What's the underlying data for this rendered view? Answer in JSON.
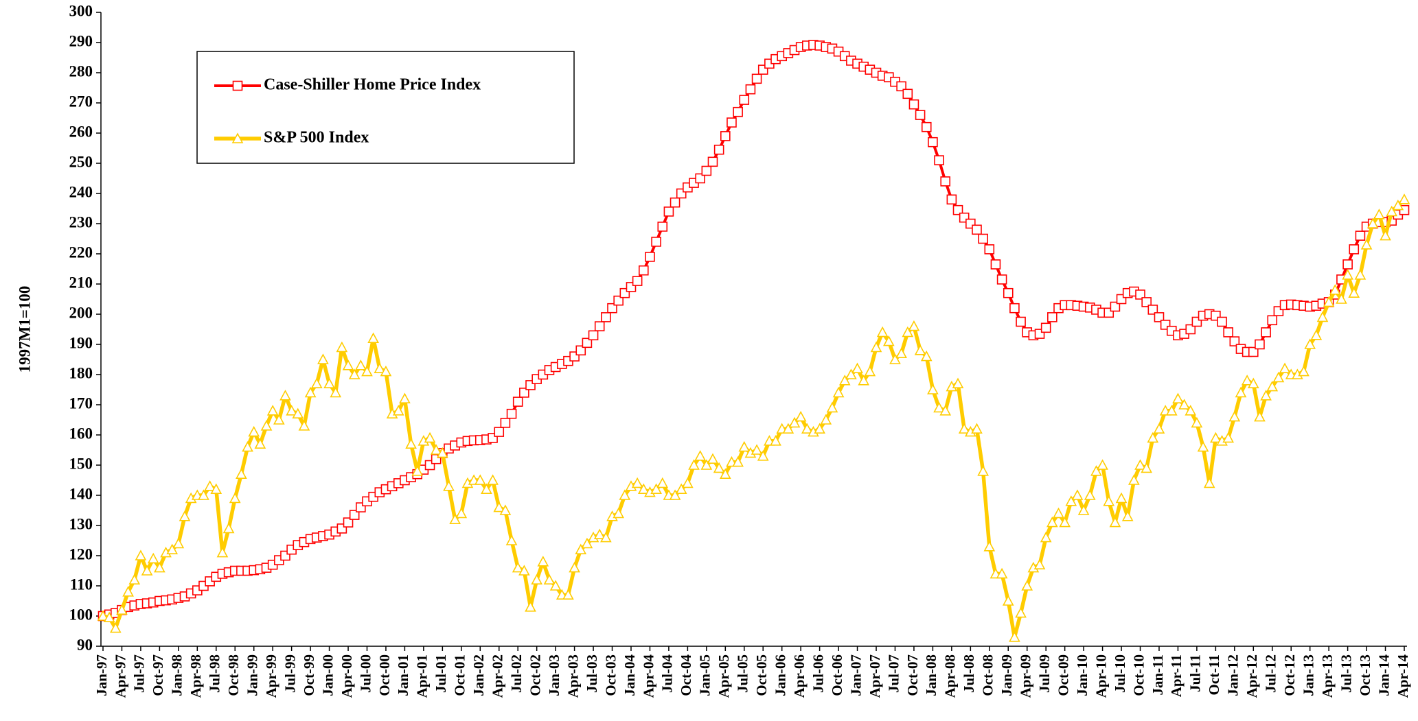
{
  "chart_data": {
    "type": "line",
    "y_label": "1997M1=100",
    "ylim": [
      90,
      300
    ],
    "yticks": [
      90,
      100,
      110,
      120,
      130,
      140,
      150,
      160,
      170,
      180,
      190,
      200,
      210,
      220,
      230,
      240,
      250,
      260,
      270,
      280,
      290,
      300
    ],
    "legend": "upper left",
    "categories": [
      "Jan-97",
      null,
      null,
      "Apr-97",
      null,
      null,
      "Jul-97",
      null,
      null,
      "Oct-97",
      null,
      null,
      "Jan-98",
      null,
      null,
      "Apr-98",
      null,
      null,
      "Jul-98",
      null,
      null,
      "Oct-98",
      null,
      null,
      "Jan-99",
      null,
      null,
      "Apr-99",
      null,
      null,
      "Jul-99",
      null,
      null,
      "Oct-99",
      null,
      null,
      "Jan-00",
      null,
      null,
      "Apr-00",
      null,
      null,
      "Jul-00",
      null,
      null,
      "Oct-00",
      null,
      null,
      "Jan-01",
      null,
      null,
      "Apr-01",
      null,
      null,
      "Jul-01",
      null,
      null,
      "Oct-01",
      null,
      null,
      "Jan-02",
      null,
      null,
      "Apr-02",
      null,
      null,
      "Jul-02",
      null,
      null,
      "Oct-02",
      null,
      null,
      "Jan-03",
      null,
      null,
      "Apr-03",
      null,
      null,
      "Jul-03",
      null,
      null,
      "Oct-03",
      null,
      null,
      "Jan-04",
      null,
      null,
      "Apr-04",
      null,
      null,
      "Jul-04",
      null,
      null,
      "Oct-04",
      null,
      null,
      "Jan-05",
      null,
      null,
      "Apr-05",
      null,
      null,
      "Jul-05",
      null,
      null,
      "Oct-05",
      null,
      null,
      "Jan-06",
      null,
      null,
      "Apr-06",
      null,
      null,
      "Jul-06",
      null,
      null,
      "Oct-06",
      null,
      null,
      "Jan-07",
      null,
      null,
      "Apr-07",
      null,
      null,
      "Jul-07",
      null,
      null,
      "Oct-07",
      null,
      null,
      "Jan-08",
      null,
      null,
      "Apr-08",
      null,
      null,
      "Jul-08",
      null,
      null,
      "Oct-08",
      null,
      null,
      "Jan-09",
      null,
      null,
      "Apr-09",
      null,
      null,
      "Jul-09",
      null,
      null,
      "Oct-09",
      null,
      null,
      "Jan-10",
      null,
      null,
      "Apr-10",
      null,
      null,
      "Jul-10",
      null,
      null,
      "Oct-10",
      null,
      null,
      "Jan-11",
      null,
      null,
      "Apr-11",
      null,
      null,
      "Jul-11",
      null,
      null,
      "Oct-11",
      null,
      null,
      "Jan-12",
      null,
      null,
      "Apr-12",
      null,
      null,
      "Jul-12",
      null,
      null,
      "Oct-12",
      null,
      null,
      "Jan-13",
      null,
      null,
      "Apr-13",
      null,
      null,
      "Jul-13",
      null,
      null,
      "Oct-13",
      null,
      null,
      "Jan-14",
      null,
      null,
      "Apr-14"
    ],
    "series": [
      {
        "name": "Case-Shiller Home Price Index",
        "color": "#ff0000",
        "marker": "square",
        "values": [
          100,
          100.5,
          101,
          102,
          103,
          103.5,
          104,
          104.2,
          104.5,
          105,
          105.2,
          105.5,
          106,
          106.5,
          107.5,
          108.5,
          110,
          111.5,
          113,
          114,
          114.5,
          115,
          115,
          115,
          115.2,
          115.5,
          116,
          117,
          118.5,
          120,
          122,
          123.5,
          124.5,
          125.5,
          126,
          126.5,
          127,
          128,
          129,
          131,
          133.5,
          136,
          138,
          139.5,
          141,
          142,
          143,
          144,
          145,
          146,
          147,
          148.5,
          150,
          152,
          154,
          155.5,
          156.5,
          157.5,
          158,
          158.2,
          158.3,
          158.5,
          159,
          161,
          164,
          167,
          171,
          174,
          176.5,
          178.5,
          180,
          181.5,
          182.5,
          183.5,
          184.5,
          186,
          188,
          190.5,
          193,
          196,
          199,
          202,
          204.5,
          207,
          209,
          211,
          214.5,
          219,
          224,
          229,
          234,
          237,
          240,
          242,
          243.5,
          245,
          247.5,
          250.5,
          254.5,
          259,
          263.5,
          267,
          271,
          274.5,
          278,
          281,
          283,
          284.5,
          285.5,
          286.5,
          287.5,
          288.5,
          289,
          289.2,
          289,
          288.5,
          288,
          287,
          285.5,
          284,
          283,
          282,
          281,
          280,
          279,
          278.5,
          277,
          275.5,
          273,
          269.5,
          266,
          262,
          257,
          251,
          244,
          238,
          234.5,
          232,
          230,
          228,
          225,
          221.5,
          216.5,
          211.5,
          207,
          202,
          197.5,
          194,
          193,
          193.5,
          195.5,
          199,
          202,
          203,
          203,
          202.8,
          202.5,
          202.2,
          201.5,
          200.5,
          200.5,
          202.5,
          205,
          207,
          207.5,
          206.5,
          204,
          201.5,
          199,
          196.5,
          194.5,
          193,
          193.5,
          195,
          197.5,
          199.5,
          200,
          199.5,
          197.5,
          194,
          191,
          188.5,
          187.5,
          187.5,
          190,
          194,
          198,
          201,
          203,
          203.2,
          203,
          202.8,
          202.5,
          202.8,
          203.5,
          204,
          206.5,
          211.5,
          216.5,
          221.5,
          226,
          229,
          230,
          230.5,
          230.5,
          231,
          233,
          234.5
        ]
      },
      {
        "name": "S&P 500 Index",
        "color": "#ffcc00",
        "marker": "triangle",
        "values": [
          100,
          99.5,
          96,
          102,
          108,
          112,
          120,
          115,
          119,
          116,
          121,
          122,
          124,
          133,
          139,
          140,
          140,
          143,
          142,
          121,
          129,
          139,
          147,
          156,
          161,
          157,
          163,
          168,
          165,
          173,
          168,
          167,
          163,
          174,
          177,
          185,
          177,
          174,
          189,
          183,
          180,
          183,
          181,
          192,
          182,
          181,
          167,
          168,
          172,
          157,
          148,
          158,
          159,
          155,
          154,
          143,
          132,
          134,
          144,
          145,
          145,
          142,
          145,
          136,
          135,
          125,
          116,
          115,
          103,
          112,
          118,
          112,
          110,
          107,
          107,
          116,
          122,
          124,
          126,
          127,
          126,
          133,
          134,
          140,
          143,
          144,
          142,
          141,
          142,
          144,
          140,
          140,
          142,
          144,
          150,
          153,
          150,
          152,
          149,
          147,
          151,
          151,
          156,
          154,
          155,
          153,
          158,
          158,
          162,
          162,
          164,
          166,
          162,
          161,
          162,
          165,
          169,
          174,
          178,
          180,
          182,
          178,
          181,
          189,
          194,
          191,
          185,
          187,
          194,
          196,
          188,
          186,
          175,
          169,
          168,
          176,
          177,
          162,
          161,
          162,
          148,
          123,
          114,
          114,
          105,
          93,
          101,
          110,
          116,
          117,
          126,
          131,
          134,
          131,
          138,
          140,
          135,
          140,
          148,
          150,
          138,
          131,
          139,
          133,
          145,
          150,
          149,
          159,
          162,
          168,
          168,
          172,
          170,
          168,
          164,
          156,
          144,
          159,
          158,
          159,
          166,
          174,
          178,
          177,
          166,
          173,
          176,
          179,
          182,
          180,
          180,
          181,
          190,
          193,
          199,
          204,
          208,
          205,
          213,
          207,
          213,
          223,
          230,
          233,
          226,
          234,
          236,
          238
        ]
      }
    ]
  }
}
